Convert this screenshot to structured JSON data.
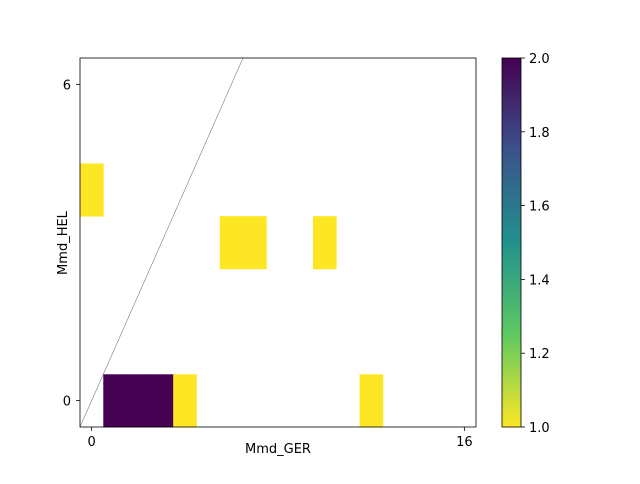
{
  "chart_data": {
    "type": "heatmap",
    "title": "",
    "xlabel": "Mmd_GER",
    "ylabel": "Mmd_HEL",
    "xlim": [
      -0.5,
      16.5
    ],
    "ylim": [
      -0.5,
      6.5
    ],
    "x_ticks": [
      0,
      16
    ],
    "y_ticks": [
      0,
      6
    ],
    "diagonal_reference_line": true,
    "colormap": "viridis",
    "colorbar": {
      "min": 1.0,
      "max": 2.0,
      "ticks": [
        "1.0",
        "1.2",
        "1.4",
        "1.6",
        "1.8",
        "2.0"
      ],
      "stops": [
        "#440154",
        "#3b528b",
        "#21918c",
        "#5ec962",
        "#fde725"
      ]
    },
    "cells": [
      {
        "x": 1,
        "y": 0,
        "value": 2
      },
      {
        "x": 2,
        "y": 0,
        "value": 2
      },
      {
        "x": 3,
        "y": 0,
        "value": 2
      },
      {
        "x": 4,
        "y": 0,
        "value": 1
      },
      {
        "x": 12,
        "y": 0,
        "value": 1
      },
      {
        "x": 6,
        "y": 3,
        "value": 1
      },
      {
        "x": 7,
        "y": 3,
        "value": 1
      },
      {
        "x": 10,
        "y": 3,
        "value": 1
      },
      {
        "x": 0,
        "y": 4,
        "value": 1
      }
    ]
  }
}
